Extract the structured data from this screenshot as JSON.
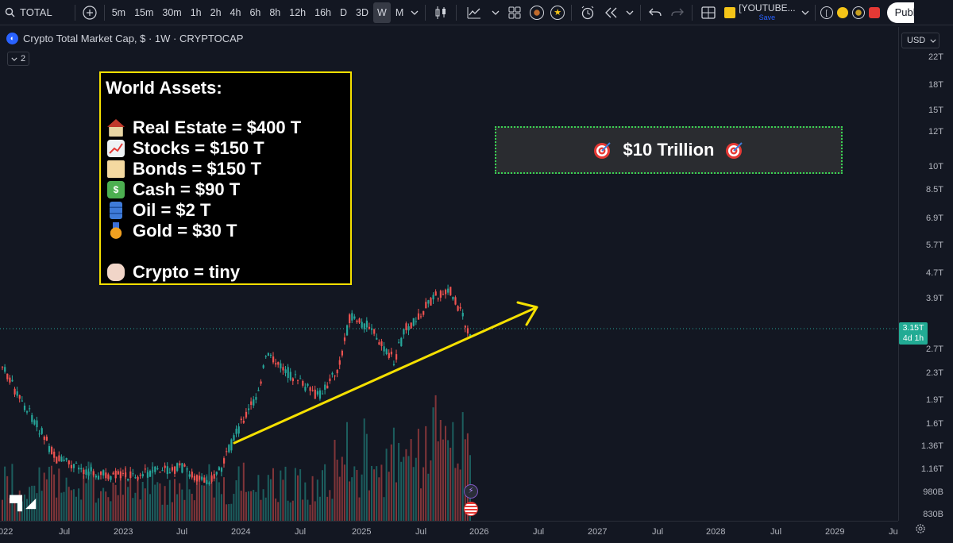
{
  "toolbar": {
    "symbol": "TOTAL",
    "timeframes": [
      "5m",
      "15m",
      "30m",
      "1h",
      "2h",
      "4h",
      "6h",
      "8h",
      "12h",
      "16h",
      "D",
      "3D",
      "W",
      "M"
    ],
    "active_timeframe": "W",
    "layout_name": "[YOUTUBE...",
    "save_label": "Save",
    "publish_label": "Publ"
  },
  "legend": {
    "title": "Crypto Total Market Cap, $ · 1W · CRYPTOCAP",
    "indicator_count": "2"
  },
  "assets_box": {
    "title": "World Assets:",
    "rows": [
      {
        "icon": "house-icon",
        "text": "Real Estate = $400 T"
      },
      {
        "icon": "chart-increasing-icon",
        "text": "Stocks = $150 T"
      },
      {
        "icon": "scroll-icon",
        "text": "Bonds = $150 T"
      },
      {
        "icon": "money-icon",
        "text": "Cash = $90 T"
      },
      {
        "icon": "oil-drum-icon",
        "text": "Oil = $2 T"
      },
      {
        "icon": "medal-icon",
        "text": "Gold = $30 T"
      },
      {
        "icon": "pinching-hand-icon",
        "text": "Crypto = tiny"
      }
    ]
  },
  "target_box": {
    "text": "$10 Trillion"
  },
  "price_axis": {
    "currency": "USD",
    "ticks": [
      "22T",
      "18T",
      "15T",
      "12T",
      "10T",
      "8.5T",
      "6.9T",
      "5.7T",
      "4.7T",
      "3.9T",
      "3.3T",
      "2.7T",
      "2.3T",
      "1.9T",
      "1.6T",
      "1.36T",
      "1.16T",
      "980B",
      "830B"
    ],
    "last_price": "3.15T",
    "countdown": "4d 1h"
  },
  "time_axis": {
    "ticks": [
      "022",
      "Jul",
      "2023",
      "Jul",
      "2024",
      "Jul",
      "2025",
      "Jul",
      "2026",
      "Jul",
      "2027",
      "Jul",
      "2028",
      "Jul",
      "2029",
      "Ju"
    ]
  },
  "colors": {
    "background": "#131722",
    "up": "#26a69a",
    "down": "#ef5350",
    "trendline": "#f5e000",
    "target_border": "#39d353"
  }
}
